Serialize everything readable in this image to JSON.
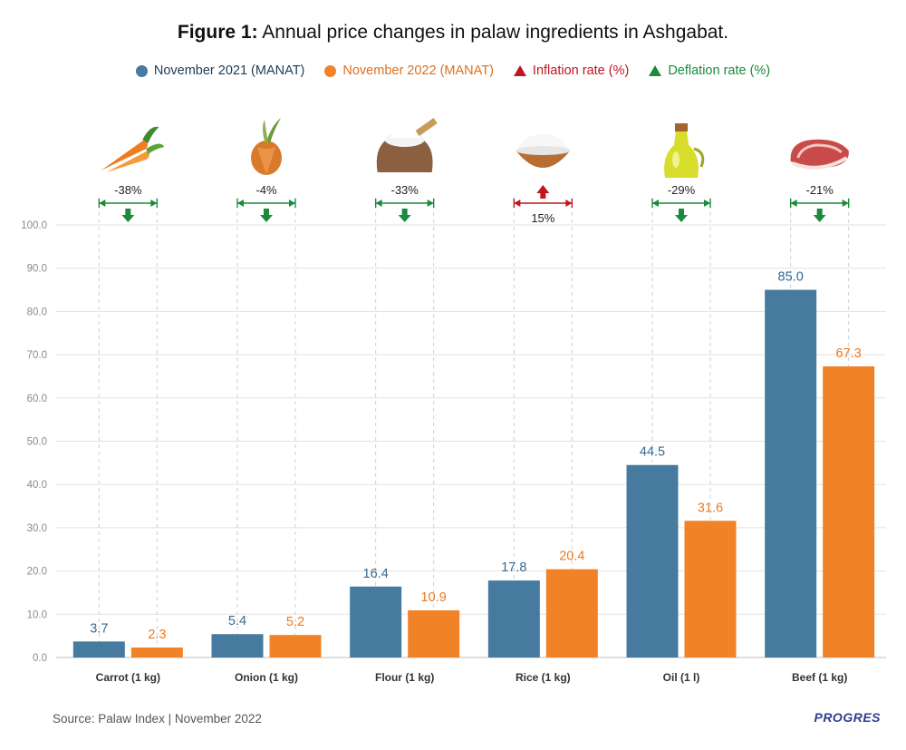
{
  "title_bold": "Figure 1:",
  "title_rest": " Annual price changes in palaw ingredients in Ashgabat.",
  "legend": [
    {
      "label": "November 2021 (MANAT)",
      "color": "#467a9e",
      "marker": "dot",
      "text_color": "#1f3b57"
    },
    {
      "label": "November 2022 (MANAT)",
      "color": "#f28228",
      "marker": "dot",
      "text_color": "#e0701c"
    },
    {
      "label": "Inflation rate (%)",
      "color": "#c0161f",
      "marker": "triangle",
      "text_color": "#c0161f"
    },
    {
      "label": "Deflation rate (%)",
      "color": "#1a8a3c",
      "marker": "triangle",
      "text_color": "#1a8a3c"
    }
  ],
  "source": "Source: Palaw Index | November 2022",
  "brand": "PROGRES",
  "chart_data": {
    "type": "bar",
    "categories": [
      "Carrot (1 kg)",
      "Onion (1 kg)",
      "Flour (1 kg)",
      "Rice (1 kg)",
      "Oil (1 l)",
      "Beef (1 kg)"
    ],
    "icons": [
      "carrot-icon",
      "onion-icon",
      "flour-sack-icon",
      "rice-bowl-icon",
      "oil-bottle-icon",
      "beef-icon"
    ],
    "series": [
      {
        "name": "November 2021 (MANAT)",
        "color": "#467a9e",
        "values": [
          3.7,
          5.4,
          16.4,
          17.8,
          44.5,
          85.0
        ]
      },
      {
        "name": "November 2022 (MANAT)",
        "color": "#f28228",
        "values": [
          2.3,
          5.2,
          10.9,
          20.4,
          31.6,
          67.3
        ]
      }
    ],
    "value_labels": {
      "November 2021 (MANAT)": [
        "3.7",
        "5.4",
        "16.4",
        "17.8",
        "44.5",
        "85.0"
      ],
      "November 2022 (MANAT)": [
        "2.3",
        "5.2",
        "10.9",
        "20.4",
        "31.6",
        "67.3"
      ]
    },
    "change": [
      {
        "label": "-38%",
        "direction": "deflation"
      },
      {
        "label": "-4%",
        "direction": "deflation"
      },
      {
        "label": "-33%",
        "direction": "deflation"
      },
      {
        "label": "15%",
        "direction": "inflation"
      },
      {
        "label": "-29%",
        "direction": "deflation"
      },
      {
        "label": "-21%",
        "direction": "deflation"
      }
    ],
    "ylim": [
      0,
      100
    ],
    "yticks": [
      "0.0",
      "10.0",
      "20.0",
      "30.0",
      "40.0",
      "50.0",
      "60.0",
      "70.0",
      "80.0",
      "90.0",
      "100.0"
    ],
    "grid": true
  }
}
